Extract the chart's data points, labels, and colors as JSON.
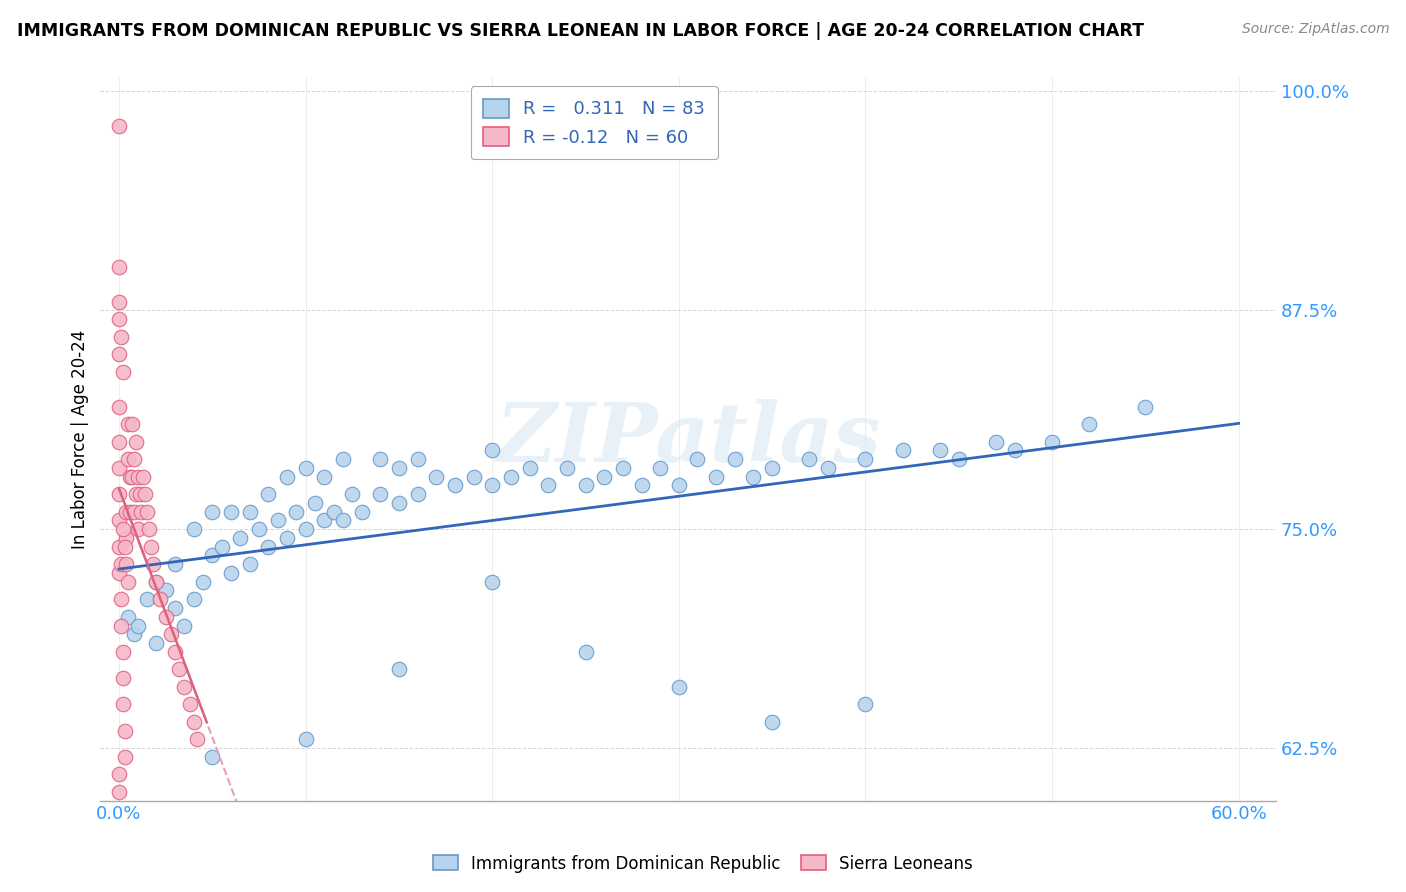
{
  "title": "IMMIGRANTS FROM DOMINICAN REPUBLIC VS SIERRA LEONEAN IN LABOR FORCE | AGE 20-24 CORRELATION CHART",
  "source": "Source: ZipAtlas.com",
  "ylabel": "In Labor Force | Age 20-24",
  "xlim": [
    -0.01,
    0.62
  ],
  "ylim": [
    0.595,
    1.008
  ],
  "yticks": [
    0.625,
    0.75,
    0.875,
    1.0
  ],
  "ytick_labels": [
    "62.5%",
    "75.0%",
    "87.5%",
    "100.0%"
  ],
  "xticks": [
    0.0,
    0.1,
    0.2,
    0.3,
    0.4,
    0.5,
    0.6
  ],
  "xtick_labels_show": [
    "0.0%",
    "60.0%"
  ],
  "blue_fill": "#b8d4ec",
  "blue_edge": "#6699cc",
  "pink_fill": "#f5b8c8",
  "pink_edge": "#e06080",
  "blue_line_color": "#3366bb",
  "pink_line_color": "#cc4466",
  "pink_dash_color": "#e8a0b0",
  "R_blue": 0.311,
  "N_blue": 83,
  "R_pink": -0.12,
  "N_pink": 60,
  "watermark": "ZIPatlas",
  "legend_label_blue": "Immigrants from Dominican Republic",
  "legend_label_pink": "Sierra Leoneans",
  "blue_x": [
    0.005,
    0.008,
    0.01,
    0.015,
    0.02,
    0.02,
    0.025,
    0.03,
    0.03,
    0.035,
    0.04,
    0.04,
    0.045,
    0.05,
    0.05,
    0.055,
    0.06,
    0.06,
    0.065,
    0.07,
    0.07,
    0.075,
    0.08,
    0.08,
    0.085,
    0.09,
    0.09,
    0.095,
    0.1,
    0.1,
    0.105,
    0.11,
    0.11,
    0.115,
    0.12,
    0.12,
    0.125,
    0.13,
    0.14,
    0.14,
    0.15,
    0.15,
    0.16,
    0.16,
    0.17,
    0.18,
    0.19,
    0.2,
    0.2,
    0.21,
    0.22,
    0.23,
    0.24,
    0.25,
    0.26,
    0.27,
    0.28,
    0.29,
    0.3,
    0.31,
    0.32,
    0.33,
    0.34,
    0.35,
    0.37,
    0.38,
    0.4,
    0.42,
    0.44,
    0.45,
    0.47,
    0.48,
    0.5,
    0.52,
    0.25,
    0.3,
    0.35,
    0.4,
    0.2,
    0.15,
    0.1,
    0.05,
    0.55
  ],
  "blue_y": [
    0.7,
    0.69,
    0.695,
    0.71,
    0.685,
    0.72,
    0.715,
    0.705,
    0.73,
    0.695,
    0.71,
    0.75,
    0.72,
    0.735,
    0.76,
    0.74,
    0.725,
    0.76,
    0.745,
    0.73,
    0.76,
    0.75,
    0.74,
    0.77,
    0.755,
    0.745,
    0.78,
    0.76,
    0.75,
    0.785,
    0.765,
    0.755,
    0.78,
    0.76,
    0.755,
    0.79,
    0.77,
    0.76,
    0.77,
    0.79,
    0.765,
    0.785,
    0.77,
    0.79,
    0.78,
    0.775,
    0.78,
    0.775,
    0.795,
    0.78,
    0.785,
    0.775,
    0.785,
    0.775,
    0.78,
    0.785,
    0.775,
    0.785,
    0.775,
    0.79,
    0.78,
    0.79,
    0.78,
    0.785,
    0.79,
    0.785,
    0.79,
    0.795,
    0.795,
    0.79,
    0.8,
    0.795,
    0.8,
    0.81,
    0.68,
    0.66,
    0.64,
    0.65,
    0.72,
    0.67,
    0.63,
    0.62,
    0.82
  ],
  "pink_x": [
    0.0,
    0.0,
    0.0,
    0.0,
    0.0,
    0.0,
    0.0,
    0.0,
    0.0,
    0.0,
    0.0,
    0.001,
    0.001,
    0.002,
    0.002,
    0.002,
    0.003,
    0.003,
    0.004,
    0.004,
    0.005,
    0.005,
    0.006,
    0.006,
    0.007,
    0.007,
    0.008,
    0.008,
    0.009,
    0.009,
    0.01,
    0.01,
    0.011,
    0.012,
    0.013,
    0.014,
    0.015,
    0.016,
    0.017,
    0.018,
    0.02,
    0.022,
    0.025,
    0.028,
    0.03,
    0.032,
    0.035,
    0.038,
    0.04,
    0.042,
    0.0,
    0.001,
    0.002,
    0.003,
    0.004,
    0.005,
    0.0,
    0.001,
    0.002,
    0.0
  ],
  "pink_y": [
    0.98,
    0.9,
    0.87,
    0.85,
    0.82,
    0.8,
    0.785,
    0.77,
    0.755,
    0.74,
    0.725,
    0.71,
    0.695,
    0.68,
    0.665,
    0.65,
    0.635,
    0.62,
    0.76,
    0.745,
    0.81,
    0.79,
    0.78,
    0.76,
    0.81,
    0.78,
    0.79,
    0.76,
    0.8,
    0.77,
    0.78,
    0.75,
    0.77,
    0.76,
    0.78,
    0.77,
    0.76,
    0.75,
    0.74,
    0.73,
    0.72,
    0.71,
    0.7,
    0.69,
    0.68,
    0.67,
    0.66,
    0.65,
    0.64,
    0.63,
    0.61,
    0.73,
    0.75,
    0.74,
    0.73,
    0.72,
    0.88,
    0.86,
    0.84,
    0.6
  ]
}
